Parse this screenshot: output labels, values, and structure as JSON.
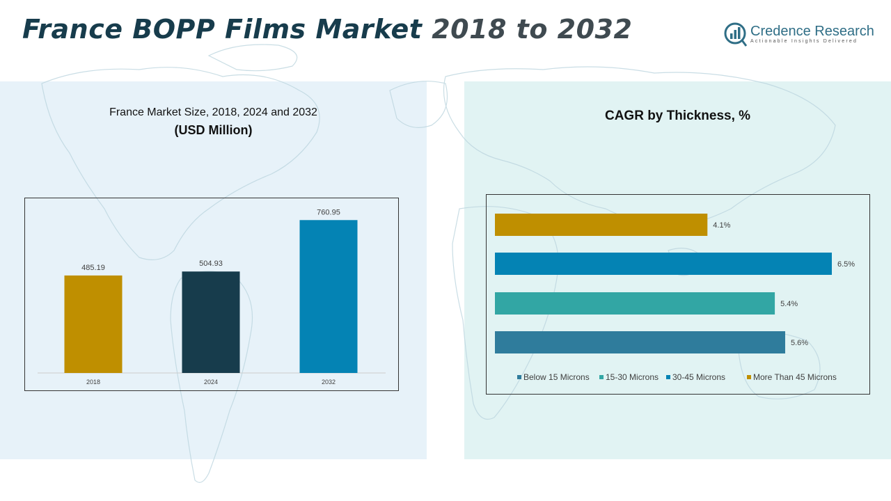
{
  "header": {
    "title_part1": "France BOPP Films Market",
    "title_part2": "2018 to 2032",
    "logo_name": "Credence Research",
    "logo_tagline": "Actionable Insights Delivered"
  },
  "colors": {
    "accent_gold": "#bf8f00",
    "dark_teal": "#173c4c",
    "blue": "#0483b4",
    "teal": "#32a6a4",
    "slate_blue": "#2f7c9c"
  },
  "chart_data": [
    {
      "type": "bar",
      "title": "France Market Size, 2018, 2024 and 2032",
      "subtitle": "(USD Million)",
      "categories": [
        "2018",
        "2024",
        "2032"
      ],
      "values": [
        485.19,
        504.93,
        760.95
      ],
      "value_labels": [
        "485.19",
        "504.93",
        "760.95"
      ],
      "bar_colors": [
        "#bf8f00",
        "#173c4c",
        "#0483b4"
      ],
      "ylim": [
        0,
        800
      ],
      "grid": false
    },
    {
      "type": "bar",
      "orientation": "horizontal",
      "title": "CAGR by Thickness, %",
      "categories": [
        "More Than 45 Microns",
        "30-45 Microns",
        "15-30 Microns",
        "Below 15 Microns"
      ],
      "values": [
        4.1,
        6.5,
        5.4,
        5.6
      ],
      "value_labels": [
        "4.1%",
        "6.5%",
        "5.4%",
        "5.6%"
      ],
      "bar_colors": [
        "#bf8f00",
        "#0483b4",
        "#32a6a4",
        "#2f7c9c"
      ],
      "xlim": [
        0,
        6.5
      ],
      "legend": {
        "placement": "bottom",
        "entries": [
          {
            "name": "Below 15 Microns",
            "color": "#2f7c9c"
          },
          {
            "name": "15-30 Microns",
            "color": "#32a6a4"
          },
          {
            "name": "30-45 Microns",
            "color": "#0483b4"
          },
          {
            "name": "More Than 45 Microns",
            "color": "#bf8f00"
          }
        ]
      },
      "grid": false
    }
  ]
}
